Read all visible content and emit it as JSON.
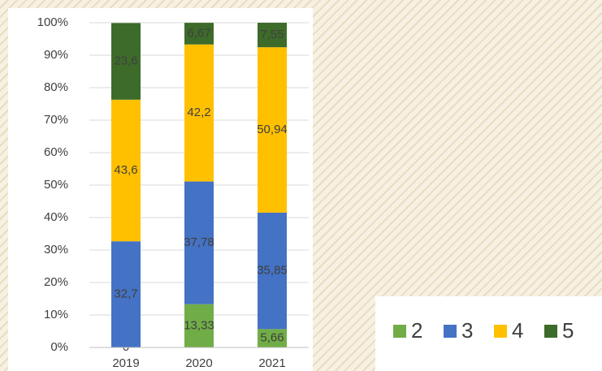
{
  "chart_data": {
    "type": "stacked_bar",
    "categories": [
      "2019",
      "2020",
      "2021"
    ],
    "series": [
      {
        "name": "2",
        "color": "#70ad47",
        "values": [
          0,
          13.33,
          5.66
        ],
        "value_labels": [
          "0",
          "13,33",
          "5,66"
        ]
      },
      {
        "name": "3",
        "color": "#4472c4",
        "values": [
          32.7,
          37.78,
          35.85
        ],
        "value_labels": [
          "32,7",
          "37,78",
          "35,85"
        ]
      },
      {
        "name": "4",
        "color": "#ffc000",
        "values": [
          43.6,
          42.2,
          50.94
        ],
        "value_labels": [
          "43,6",
          "42,2",
          "50,94"
        ]
      },
      {
        "name": "5",
        "color": "#3d6b2a",
        "values": [
          23.6,
          6.67,
          7.55
        ],
        "value_labels": [
          "23,6",
          "6,67",
          "7,55"
        ]
      }
    ],
    "ylim": [
      0,
      100
    ],
    "yticks": [
      {
        "value": 0,
        "label": "0%"
      },
      {
        "value": 10,
        "label": "10%"
      },
      {
        "value": 20,
        "label": "20%"
      },
      {
        "value": 30,
        "label": "30%"
      },
      {
        "value": 40,
        "label": "40%"
      },
      {
        "value": 50,
        "label": "50%"
      },
      {
        "value": 60,
        "label": "60%"
      },
      {
        "value": 70,
        "label": "70%"
      },
      {
        "value": 80,
        "label": "80%"
      },
      {
        "value": 90,
        "label": "90%"
      },
      {
        "value": 100,
        "label": "100%"
      }
    ],
    "grid": true
  }
}
